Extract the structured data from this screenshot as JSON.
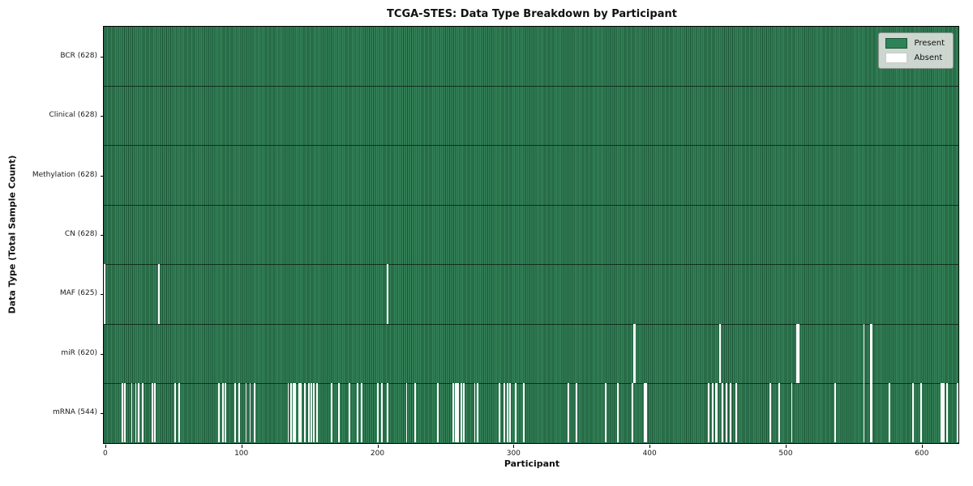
{
  "title": "TCGA-STES: Data Type Breakdown by Participant",
  "axes": {
    "xlabel": "Participant",
    "ylabel": "Data Type (Total Sample Count)",
    "x_ticks": [
      0,
      100,
      200,
      300,
      400,
      500,
      600
    ]
  },
  "legend": {
    "items": [
      {
        "label": "Present",
        "swatch": "present",
        "color": "#2e8257"
      },
      {
        "label": "Absent",
        "swatch": "absent",
        "color": "#ffffff"
      }
    ]
  },
  "colors": {
    "present_face": "#35855a",
    "present_edge": "#1c5236",
    "absent": "#ffffff",
    "plot_border": "#000000",
    "legend_bg": "#dadfda"
  },
  "chart_data": {
    "type": "heatmap",
    "title": "TCGA-STES: Data Type Breakdown by Participant",
    "xlabel": "Participant",
    "ylabel": "Data Type (Total Sample Count)",
    "n_participants": 628,
    "x_range": [
      0,
      627
    ],
    "legend": [
      "Present",
      "Absent"
    ],
    "grid": false,
    "legend_position": "upper right",
    "rows": [
      {
        "label": "BCR (628)",
        "name": "BCR",
        "present_count": 628,
        "absent_participants": []
      },
      {
        "label": "Clinical (628)",
        "name": "Clinical",
        "present_count": 628,
        "absent_participants": []
      },
      {
        "label": "Methylation (628)",
        "name": "Methylation",
        "present_count": 628,
        "absent_participants": []
      },
      {
        "label": "CN (628)",
        "name": "CN",
        "present_count": 628,
        "absent_participants": []
      },
      {
        "label": "MAF (625)",
        "name": "MAF",
        "present_count": 625,
        "absent_participants": [
          0,
          40,
          208
        ]
      },
      {
        "label": "miR (620)",
        "name": "miR",
        "present_count": 620,
        "absent_participants": [
          389,
          390,
          452,
          509,
          510,
          558,
          563,
          564
        ]
      },
      {
        "label": "mRNA (544)",
        "name": "mRNA",
        "present_count": 544,
        "absent_participants": [
          13,
          15,
          20,
          23,
          25,
          28,
          35,
          37,
          52,
          55,
          84,
          87,
          89,
          96,
          99,
          104,
          107,
          110,
          135,
          137,
          139,
          140,
          143,
          144,
          147,
          150,
          152,
          154,
          156,
          167,
          172,
          180,
          186,
          189,
          201,
          204,
          208,
          222,
          228,
          245,
          256,
          258,
          259,
          260,
          262,
          264,
          272,
          274,
          290,
          294,
          296,
          298,
          302,
          308,
          341,
          347,
          368,
          377,
          388,
          397,
          398,
          444,
          447,
          449,
          450,
          454,
          457,
          460,
          464,
          489,
          496,
          505,
          537,
          558,
          563,
          564,
          577,
          594,
          600,
          615,
          616,
          617,
          619,
          627
        ]
      }
    ]
  }
}
